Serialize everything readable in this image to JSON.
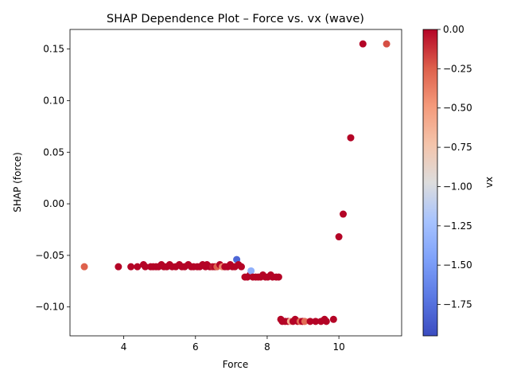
{
  "chart_data": {
    "type": "scatter",
    "title": "SHAP Dependence Plot – Force vs. vx (wave)",
    "xlabel": "Force",
    "ylabel": "SHAP (force)",
    "xlim": [
      2.5,
      11.75
    ],
    "ylim": [
      -0.128,
      0.169
    ],
    "x_ticks": [
      4,
      6,
      8,
      10
    ],
    "y_ticks": [
      -0.1,
      -0.05,
      0.0,
      0.05,
      0.1,
      0.15
    ],
    "x_tick_labels": [
      "4",
      "6",
      "8",
      "10"
    ],
    "y_tick_labels": [
      "−0.10",
      "−0.05",
      "0.00",
      "0.05",
      "0.10",
      "0.15"
    ],
    "grid": false,
    "colorbar": {
      "label": "vx",
      "colormap": "coolwarm",
      "range": [
        -1.95,
        0.0
      ],
      "ticks": [
        0.0,
        -0.25,
        -0.5,
        -0.75,
        -1.0,
        -1.25,
        -1.5,
        -1.75
      ],
      "tick_labels": [
        "0.00",
        "−0.25",
        "−0.50",
        "−0.75",
        "−1.00",
        "−1.25",
        "−1.50",
        "−1.75"
      ]
    },
    "points": [
      {
        "x": 2.9,
        "y": -0.061,
        "c": -0.25
      },
      {
        "x": 3.85,
        "y": -0.061,
        "c": 0.0
      },
      {
        "x": 4.2,
        "y": -0.061,
        "c": 0.0
      },
      {
        "x": 4.38,
        "y": -0.061,
        "c": 0.0
      },
      {
        "x": 4.55,
        "y": -0.059,
        "c": 0.0
      },
      {
        "x": 4.6,
        "y": -0.061,
        "c": 0.0
      },
      {
        "x": 4.75,
        "y": -0.061,
        "c": 0.0
      },
      {
        "x": 4.82,
        "y": -0.061,
        "c": 0.0
      },
      {
        "x": 4.9,
        "y": -0.061,
        "c": 0.0
      },
      {
        "x": 4.97,
        "y": -0.061,
        "c": 0.0
      },
      {
        "x": 5.05,
        "y": -0.059,
        "c": 0.0
      },
      {
        "x": 5.12,
        "y": -0.061,
        "c": 0.0
      },
      {
        "x": 5.2,
        "y": -0.061,
        "c": 0.0
      },
      {
        "x": 5.28,
        "y": -0.059,
        "c": 0.0
      },
      {
        "x": 5.35,
        "y": -0.061,
        "c": 0.0
      },
      {
        "x": 5.45,
        "y": -0.061,
        "c": 0.0
      },
      {
        "x": 5.55,
        "y": -0.059,
        "c": 0.0
      },
      {
        "x": 5.62,
        "y": -0.061,
        "c": 0.0
      },
      {
        "x": 5.7,
        "y": -0.061,
        "c": 0.0
      },
      {
        "x": 5.8,
        "y": -0.059,
        "c": 0.0
      },
      {
        "x": 5.88,
        "y": -0.061,
        "c": 0.0
      },
      {
        "x": 5.95,
        "y": -0.061,
        "c": 0.0
      },
      {
        "x": 6.05,
        "y": -0.061,
        "c": 0.0
      },
      {
        "x": 6.12,
        "y": -0.061,
        "c": 0.0
      },
      {
        "x": 6.2,
        "y": -0.059,
        "c": 0.0
      },
      {
        "x": 6.28,
        "y": -0.061,
        "c": 0.0
      },
      {
        "x": 6.32,
        "y": -0.059,
        "c": 0.0
      },
      {
        "x": 6.4,
        "y": -0.061,
        "c": 0.0
      },
      {
        "x": 6.48,
        "y": -0.061,
        "c": -0.05
      },
      {
        "x": 6.55,
        "y": -0.061,
        "c": 0.0
      },
      {
        "x": 6.6,
        "y": -0.061,
        "c": -0.25
      },
      {
        "x": 6.68,
        "y": -0.059,
        "c": 0.0
      },
      {
        "x": 6.75,
        "y": -0.061,
        "c": -0.4
      },
      {
        "x": 6.82,
        "y": -0.061,
        "c": 0.0
      },
      {
        "x": 6.9,
        "y": -0.061,
        "c": 0.0
      },
      {
        "x": 6.97,
        "y": -0.059,
        "c": 0.0
      },
      {
        "x": 7.03,
        "y": -0.061,
        "c": 0.0
      },
      {
        "x": 7.1,
        "y": -0.061,
        "c": 0.0
      },
      {
        "x": 7.15,
        "y": -0.054,
        "c": -1.8
      },
      {
        "x": 7.2,
        "y": -0.059,
        "c": 0.0
      },
      {
        "x": 7.28,
        "y": -0.061,
        "c": 0.0
      },
      {
        "x": 7.38,
        "y": -0.071,
        "c": 0.0
      },
      {
        "x": 7.45,
        "y": -0.071,
        "c": 0.0
      },
      {
        "x": 7.52,
        "y": -0.069,
        "c": 0.0
      },
      {
        "x": 7.55,
        "y": -0.065,
        "c": -1.35
      },
      {
        "x": 7.6,
        "y": -0.071,
        "c": 0.0
      },
      {
        "x": 7.68,
        "y": -0.071,
        "c": 0.0
      },
      {
        "x": 7.75,
        "y": -0.071,
        "c": 0.0
      },
      {
        "x": 7.82,
        "y": -0.071,
        "c": 0.0
      },
      {
        "x": 7.88,
        "y": -0.069,
        "c": 0.0
      },
      {
        "x": 7.95,
        "y": -0.071,
        "c": 0.0
      },
      {
        "x": 8.02,
        "y": -0.071,
        "c": 0.0
      },
      {
        "x": 8.1,
        "y": -0.069,
        "c": 0.0
      },
      {
        "x": 8.15,
        "y": -0.071,
        "c": 0.0
      },
      {
        "x": 8.25,
        "y": -0.071,
        "c": 0.0
      },
      {
        "x": 8.32,
        "y": -0.071,
        "c": 0.0
      },
      {
        "x": 8.38,
        "y": -0.112,
        "c": 0.0
      },
      {
        "x": 8.42,
        "y": -0.114,
        "c": 0.0
      },
      {
        "x": 8.5,
        "y": -0.114,
        "c": 0.0
      },
      {
        "x": 8.58,
        "y": -0.114,
        "c": 0.0
      },
      {
        "x": 8.65,
        "y": -0.114,
        "c": -0.6
      },
      {
        "x": 8.72,
        "y": -0.114,
        "c": 0.0
      },
      {
        "x": 8.78,
        "y": -0.112,
        "c": 0.0
      },
      {
        "x": 8.85,
        "y": -0.114,
        "c": 0.0
      },
      {
        "x": 8.92,
        "y": -0.114,
        "c": -0.3
      },
      {
        "x": 8.98,
        "y": -0.114,
        "c": 0.0
      },
      {
        "x": 9.05,
        "y": -0.114,
        "c": -0.3
      },
      {
        "x": 9.2,
        "y": -0.114,
        "c": 0.0
      },
      {
        "x": 9.35,
        "y": -0.114,
        "c": 0.0
      },
      {
        "x": 9.5,
        "y": -0.114,
        "c": 0.0
      },
      {
        "x": 9.6,
        "y": -0.112,
        "c": 0.0
      },
      {
        "x": 9.65,
        "y": -0.114,
        "c": 0.0
      },
      {
        "x": 9.85,
        "y": -0.112,
        "c": 0.0
      },
      {
        "x": 10.0,
        "y": -0.032,
        "c": 0.0
      },
      {
        "x": 10.12,
        "y": -0.01,
        "c": 0.0
      },
      {
        "x": 10.33,
        "y": 0.064,
        "c": 0.0
      },
      {
        "x": 10.67,
        "y": 0.155,
        "c": 0.0
      },
      {
        "x": 11.33,
        "y": 0.155,
        "c": -0.2
      }
    ]
  }
}
